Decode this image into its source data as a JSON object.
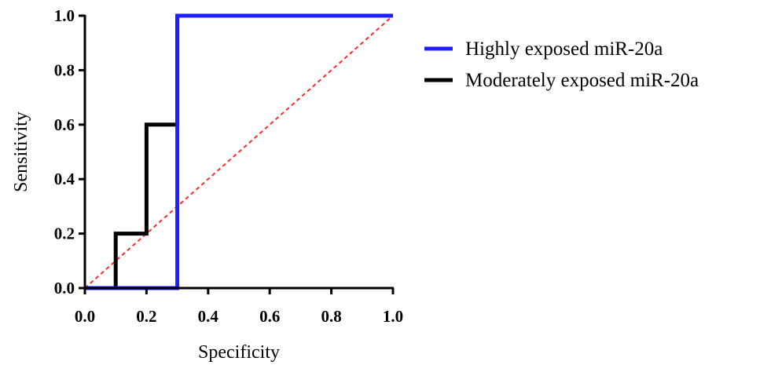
{
  "chart_data": {
    "type": "line",
    "title": "",
    "xlabel": "Specificity",
    "ylabel": "Sensitivity",
    "xlim": [
      0,
      1
    ],
    "ylim": [
      0,
      1
    ],
    "x_ticks": [
      "0.0",
      "0.2",
      "0.4",
      "0.6",
      "0.8",
      "1.0"
    ],
    "y_ticks": [
      "0.0",
      "0.2",
      "0.4",
      "0.6",
      "0.8",
      "1.0"
    ],
    "grid": false,
    "legend_position": "right",
    "series": [
      {
        "name": "Highly exposed miR-20a",
        "color": "#1f1fff",
        "style": "solid",
        "x": [
          0,
          0.3,
          0.3,
          1
        ],
        "y": [
          0,
          0,
          1,
          1
        ]
      },
      {
        "name": "Moderately exposed miR-20a",
        "color": "#000000",
        "style": "solid",
        "x": [
          0,
          0.1,
          0.1,
          0.2,
          0.2,
          0.3,
          0.3
        ],
        "y": [
          0,
          0,
          0.2,
          0.2,
          0.6,
          0.6,
          1
        ]
      }
    ],
    "reference_line": {
      "color": "#ff2a2a",
      "style": "dashed",
      "x": [
        0,
        1
      ],
      "y": [
        0,
        1
      ]
    }
  }
}
